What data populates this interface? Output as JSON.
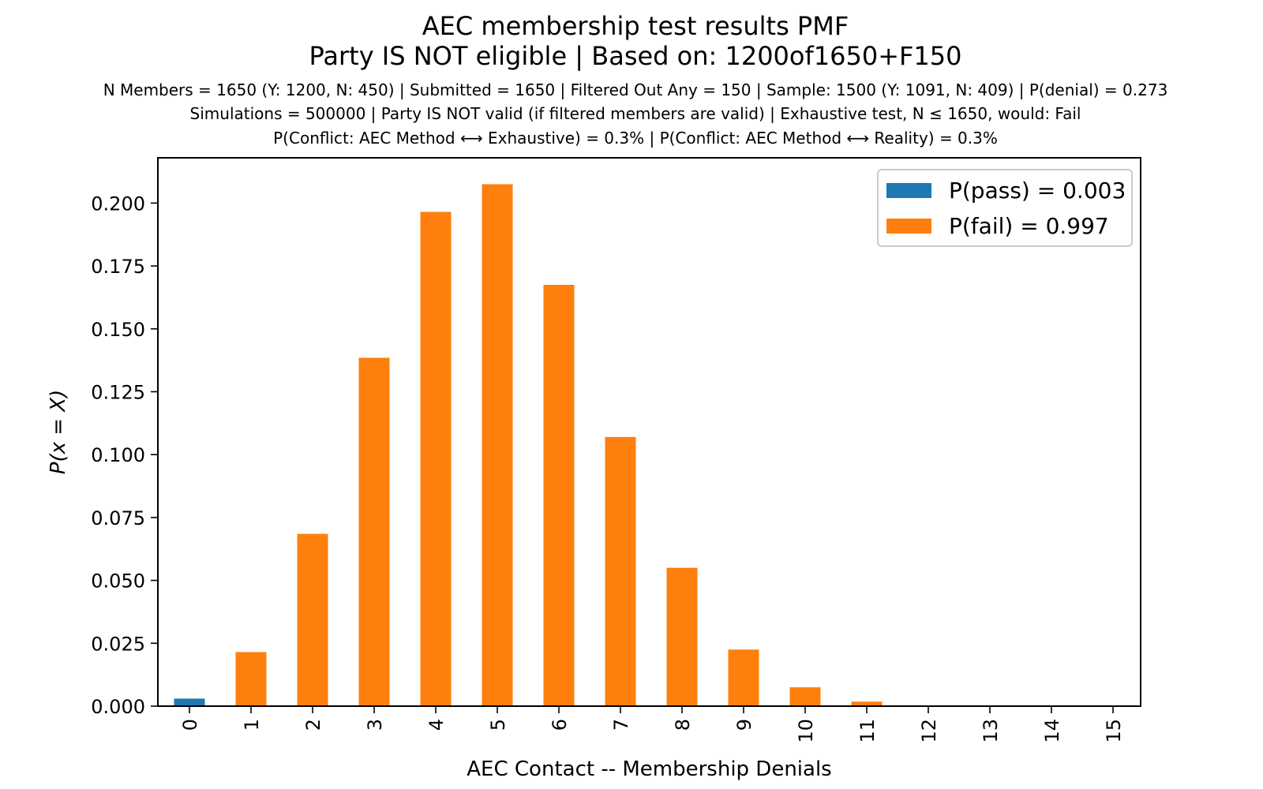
{
  "chart_data": {
    "type": "bar",
    "title": "AEC membership test results PMF",
    "title2": "Party IS NOT eligible | Based on: 1200of1650+F150",
    "subtitle_lines": [
      "N Members = 1650 (Y: 1200, N: 450) | Submitted = 1650 | Filtered Out Any = 150 | Sample: 1500 (Y: 1091, N: 409) | P(denial) = 0.273",
      "Simulations = 500000 | Party IS NOT valid (if filtered members are valid) | Exhaustive test, N ≤ 1650, would: Fail",
      "P(Conflict: AEC Method ⟷ Exhaustive) = 0.3% | P(Conflict: AEC Method ⟷ Reality) = 0.3%"
    ],
    "xlabel": "AEC Contact -- Membership Denials",
    "ylabel": "P(x = X)",
    "categories": [
      "0",
      "1",
      "2",
      "3",
      "4",
      "5",
      "6",
      "7",
      "8",
      "9",
      "10",
      "11",
      "12",
      "13",
      "14",
      "15"
    ],
    "values": [
      0.003,
      0.0215,
      0.0685,
      0.1385,
      0.1965,
      0.2075,
      0.1675,
      0.107,
      0.055,
      0.0225,
      0.0075,
      0.0018,
      0.0003,
      3e-05,
      0.0,
      0.0
    ],
    "bar_status": [
      "pass",
      "fail",
      "fail",
      "fail",
      "fail",
      "fail",
      "fail",
      "fail",
      "fail",
      "fail",
      "fail",
      "fail",
      "fail",
      "fail",
      "fail",
      "fail"
    ],
    "ylim": [
      0,
      0.218
    ],
    "yticks": [
      "0.000",
      "0.025",
      "0.050",
      "0.075",
      "0.100",
      "0.125",
      "0.150",
      "0.175",
      "0.200"
    ],
    "ytick_values": [
      0,
      0.025,
      0.05,
      0.075,
      0.1,
      0.125,
      0.15,
      0.175,
      0.2
    ],
    "legend": {
      "position": "top-right",
      "entries": [
        {
          "name": "pass",
          "label": "P(pass) = 0.003",
          "color": "#1f77b4"
        },
        {
          "name": "fail",
          "label": "P(fail) = 0.997",
          "color": "#ff7f0e"
        }
      ]
    },
    "colors": {
      "pass": "#1f77b4",
      "fail": "#ff7f0e"
    },
    "grid": false
  }
}
